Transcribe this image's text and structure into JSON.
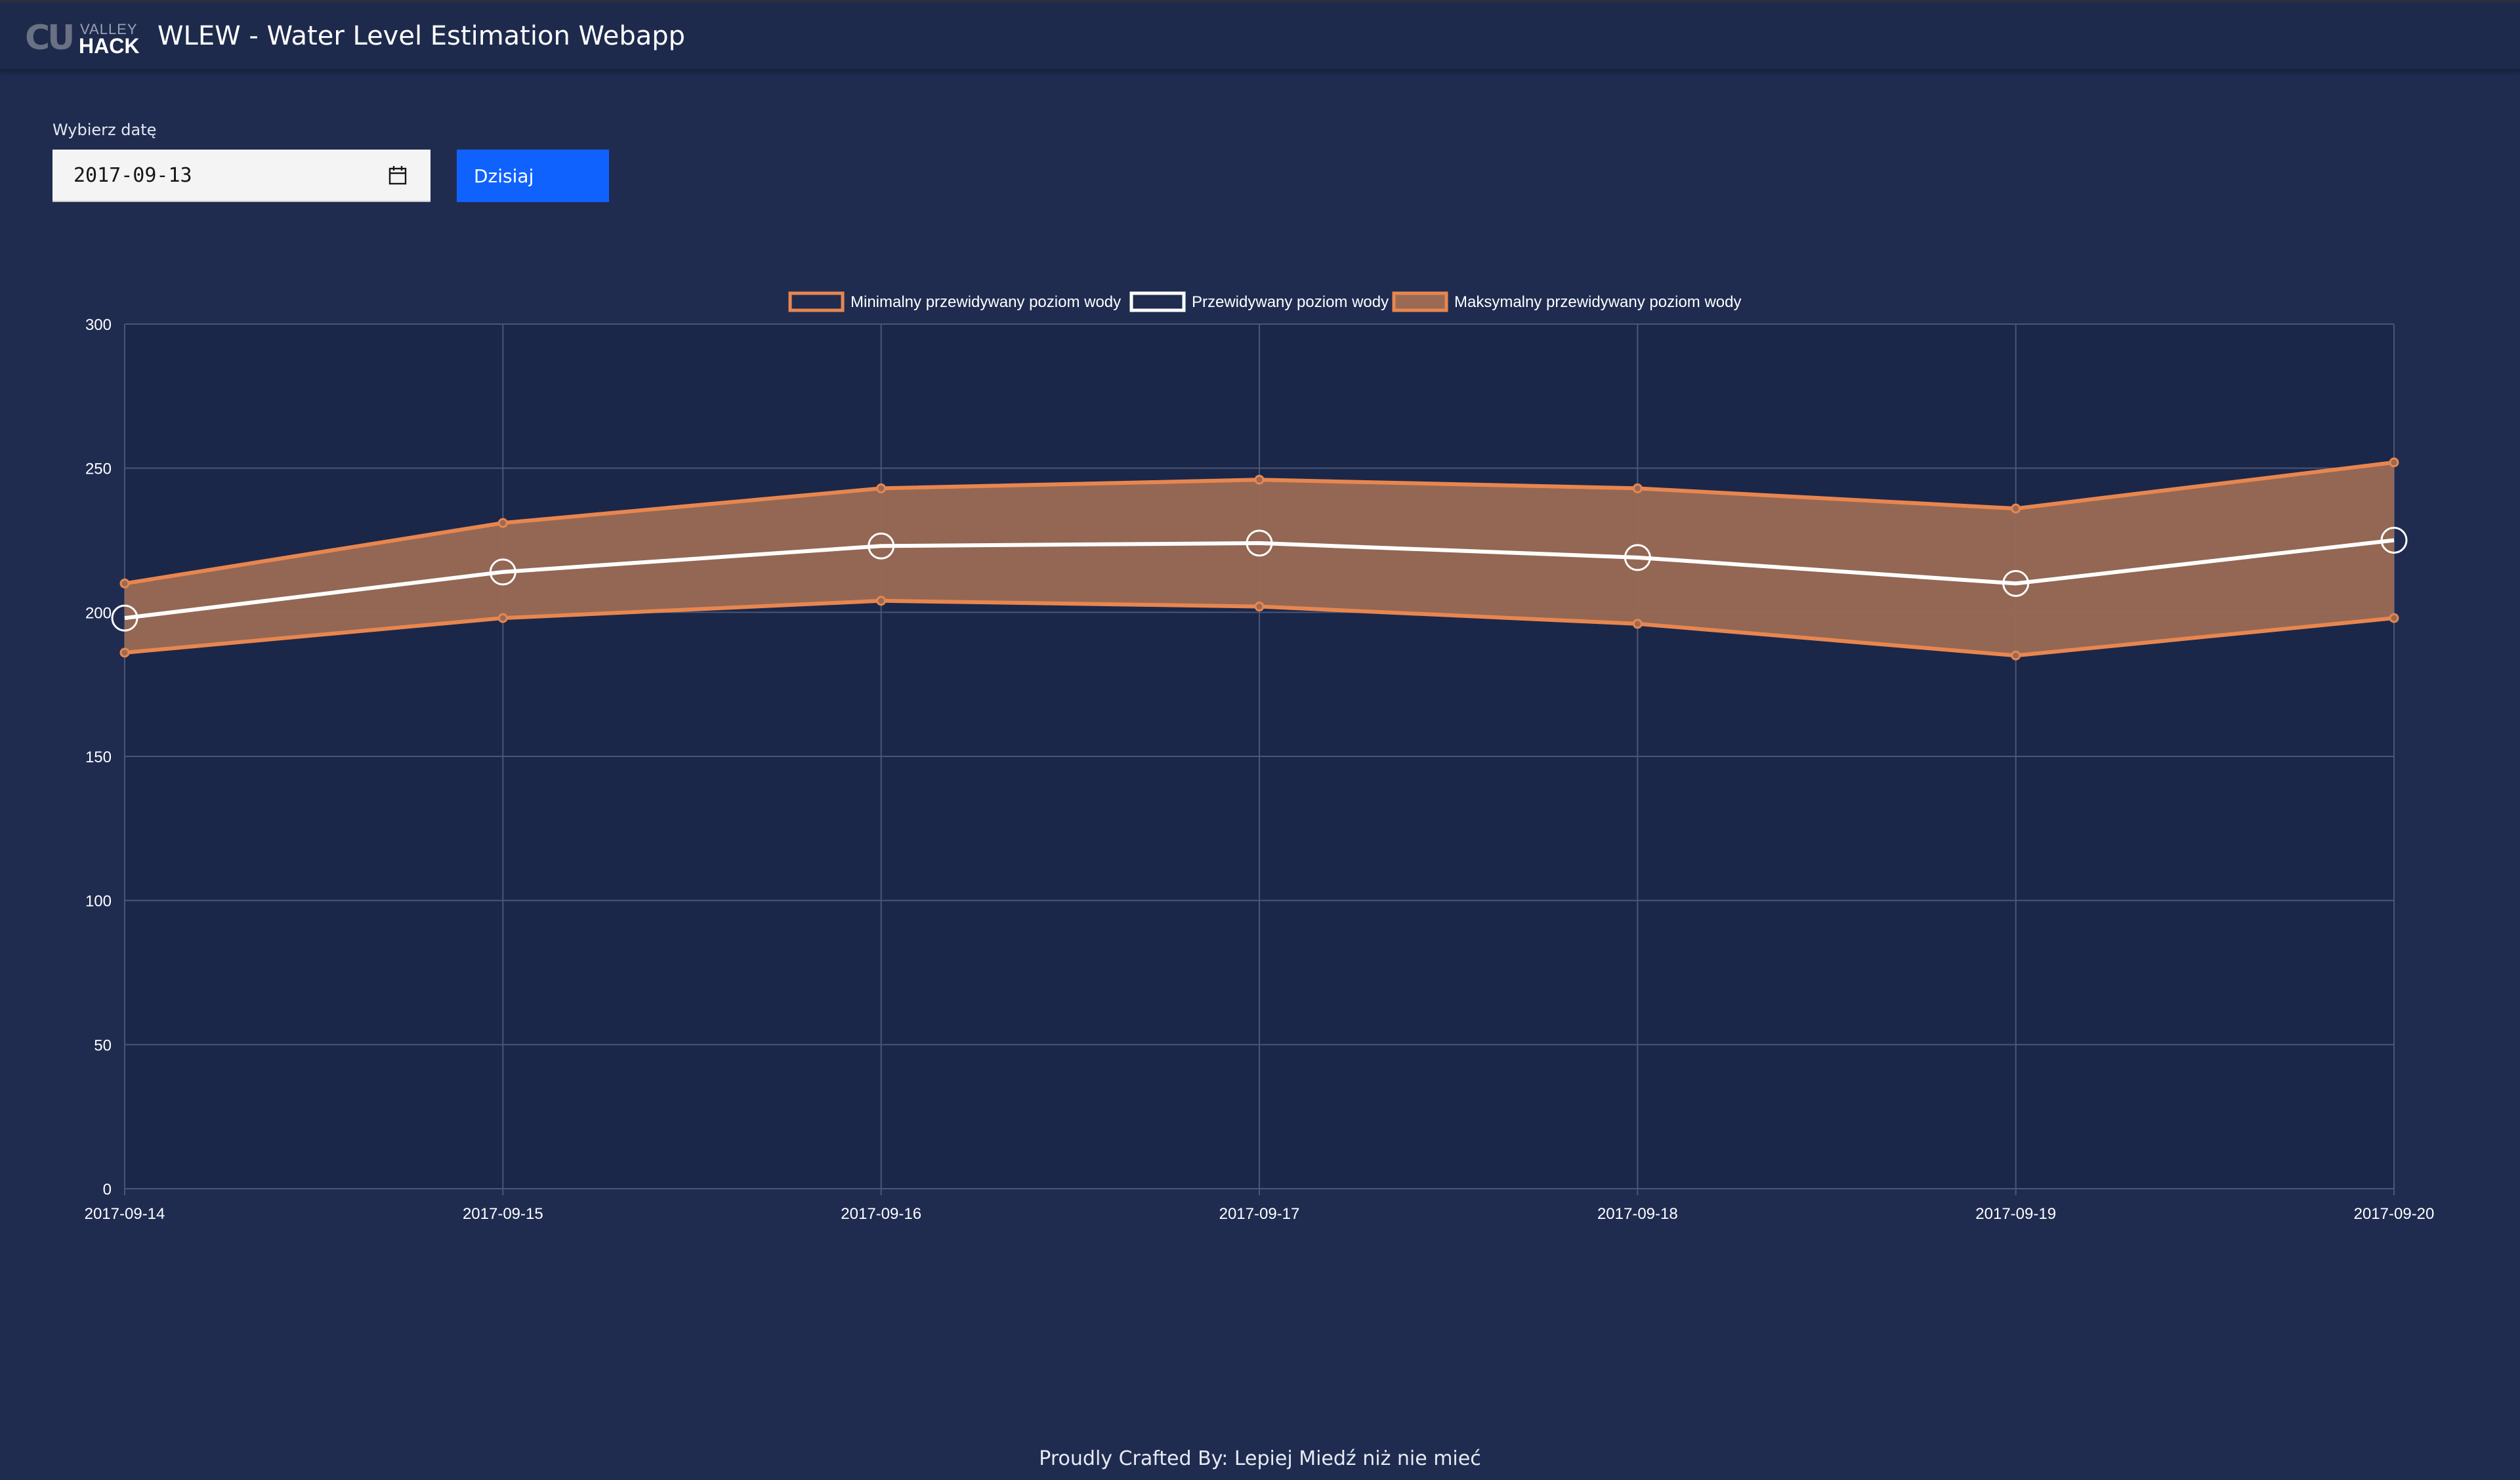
{
  "header": {
    "logo": {
      "mark": "CU",
      "top": "VALLEY",
      "bottom": "HACK"
    },
    "title": "WLEW - Water Level Estimation Webapp"
  },
  "controls": {
    "date_label": "Wybierz datę",
    "date_value": "2017-09-13",
    "today_button": "Dzisiaj"
  },
  "chart_data": {
    "type": "line",
    "x": [
      "2017-09-14",
      "2017-09-15",
      "2017-09-16",
      "2017-09-17",
      "2017-09-18",
      "2017-09-19",
      "2017-09-20"
    ],
    "series": [
      {
        "name": "Minimalny przewidywany poziom wody",
        "values": [
          186,
          198,
          204,
          202,
          196,
          185,
          198
        ],
        "color": "#e8864f",
        "fill": false
      },
      {
        "name": "Przewidywany poziom wody",
        "values": [
          198,
          214,
          223,
          224,
          219,
          210,
          225
        ],
        "color": "#ffffff",
        "fill": false
      },
      {
        "name": "Maksymalny przewidywany poziom wody",
        "values": [
          210,
          231,
          243,
          246,
          243,
          236,
          252
        ],
        "color": "#e8864f",
        "fill": true
      }
    ],
    "ylim": [
      0,
      300
    ],
    "yticks": [
      0,
      50,
      100,
      150,
      200,
      250,
      300
    ],
    "grid": true,
    "legend": "top-center"
  },
  "footer": {
    "text": "Proudly Crafted By: Lepiej Miedź niż nie mieć"
  }
}
